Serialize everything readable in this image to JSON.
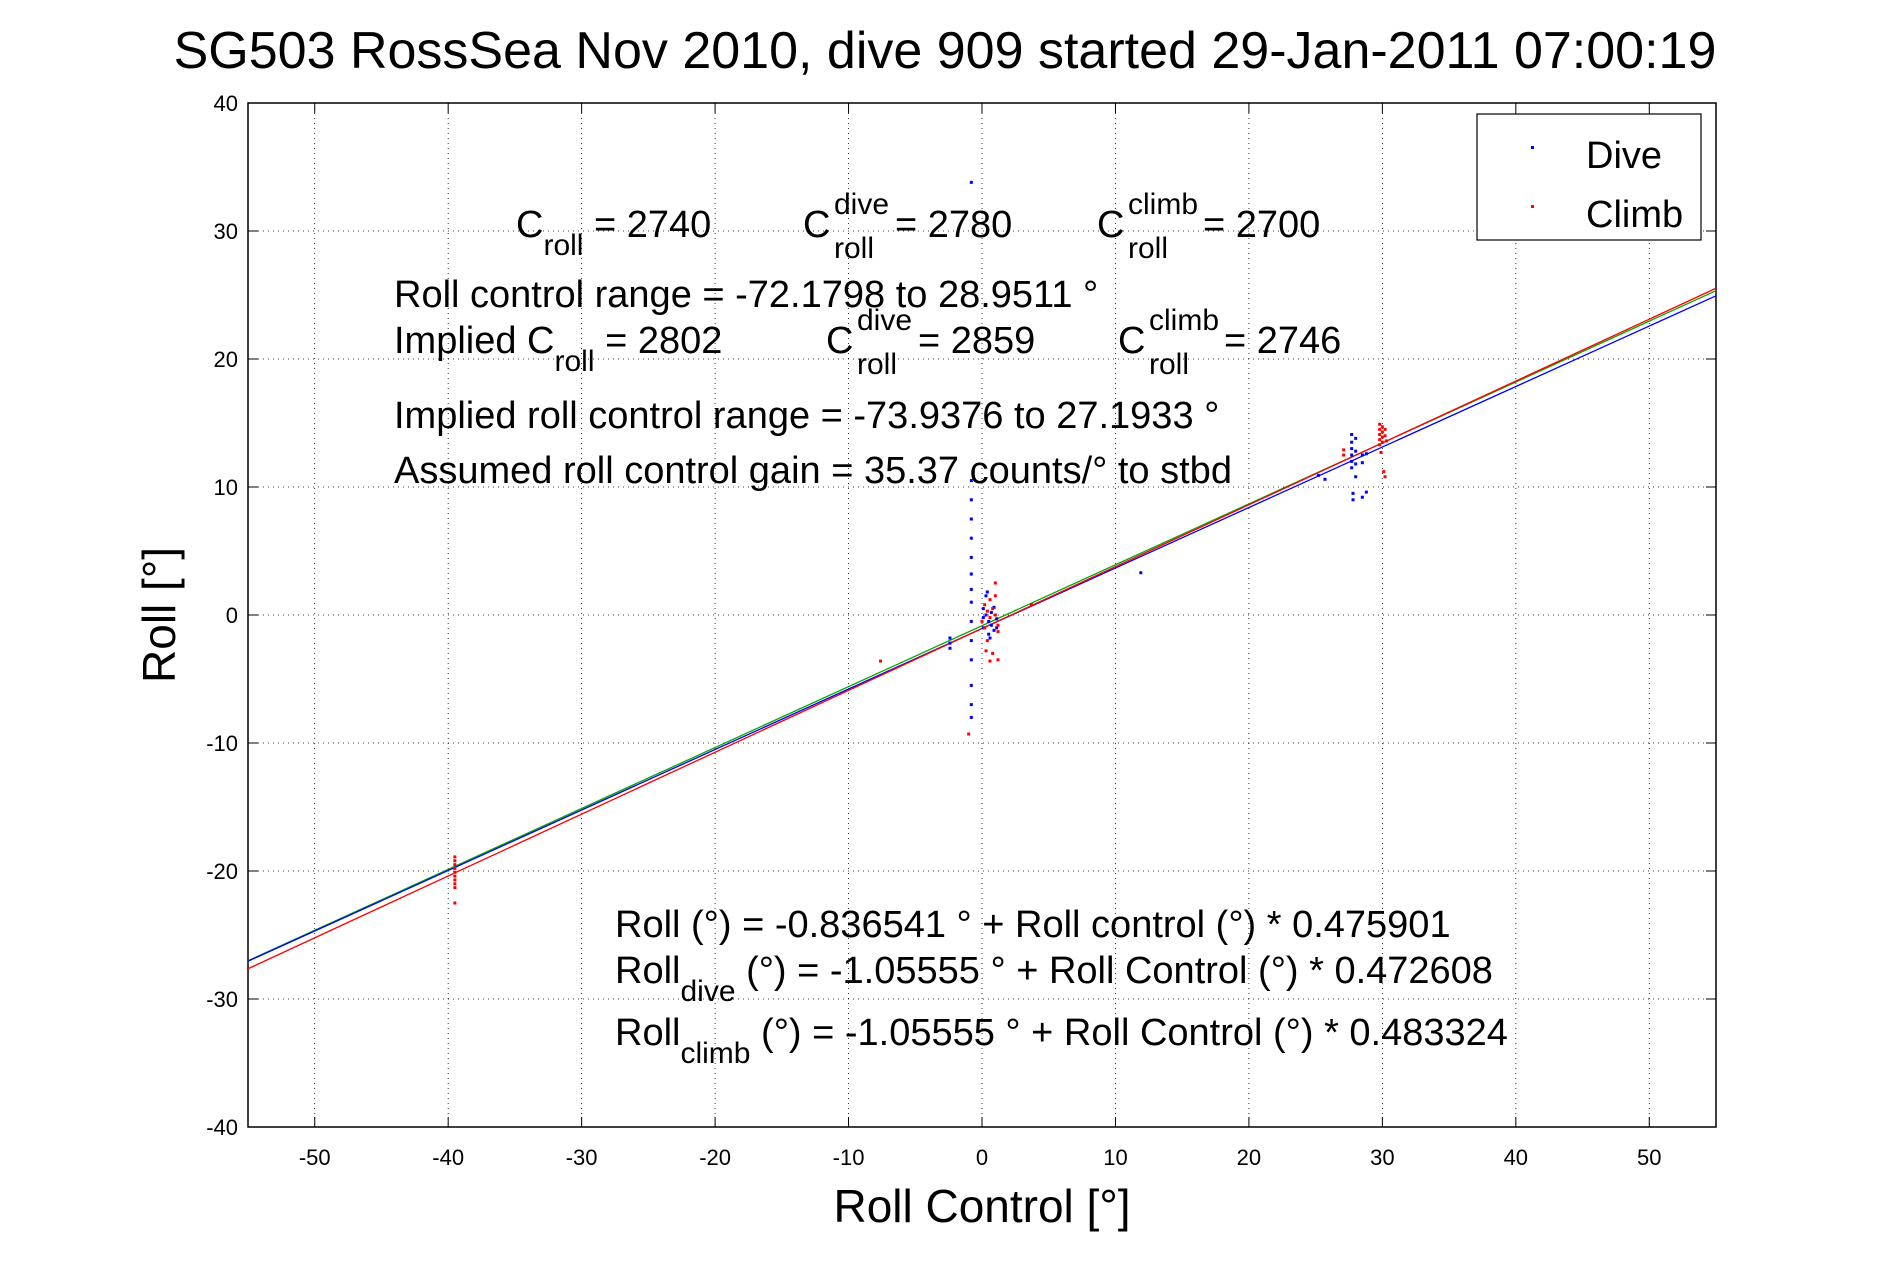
{
  "chart_data": {
    "type": "scatter",
    "title": "SG503 RossSea Nov 2010, dive 909 started 29-Jan-2011 07:00:19",
    "xlabel": "Roll Control [°]",
    "ylabel": "Roll [°]",
    "xlim": [
      -55,
      55
    ],
    "ylim": [
      -40,
      40
    ],
    "xticks": [
      -50,
      -40,
      -30,
      -20,
      -10,
      0,
      10,
      20,
      30,
      40,
      50
    ],
    "yticks": [
      -40,
      -30,
      -20,
      -10,
      0,
      10,
      20,
      30,
      40
    ],
    "grid": true,
    "legend": {
      "position": "top-right",
      "entries": [
        "Dive",
        "Climb"
      ]
    },
    "colors": {
      "dive": "#0000ff",
      "climb": "#ff0000",
      "fit_all": "#00aa00",
      "fit_dive": "#0000ff",
      "fit_climb": "#ff0000"
    },
    "series": [
      {
        "name": "Dive",
        "color": "#0000ff",
        "points": [
          [
            -0.8,
            33.8
          ],
          [
            -0.8,
            10.5
          ],
          [
            -0.8,
            9.0
          ],
          [
            -0.8,
            7.5
          ],
          [
            -0.8,
            6.0
          ],
          [
            -0.8,
            4.5
          ],
          [
            -0.8,
            3.2
          ],
          [
            -0.8,
            2.0
          ],
          [
            -0.8,
            1.0
          ],
          [
            -0.8,
            -0.5
          ],
          [
            -0.8,
            -2.0
          ],
          [
            -0.8,
            -3.5
          ],
          [
            -0.8,
            -5.5
          ],
          [
            -0.8,
            -7.0
          ],
          [
            -0.8,
            -8.0
          ],
          [
            -2.4,
            -1.8
          ],
          [
            -2.4,
            -2.2
          ],
          [
            -2.4,
            -2.6
          ],
          [
            0.1,
            0.5
          ],
          [
            0.1,
            -0.2
          ],
          [
            0.1,
            -1.0
          ],
          [
            0.3,
            1.5
          ],
          [
            0.3,
            0.0
          ],
          [
            0.5,
            -0.5
          ],
          [
            0.5,
            -1.5
          ],
          [
            0.7,
            0.2
          ],
          [
            0.7,
            -0.8
          ],
          [
            0.9,
            0.6
          ],
          [
            0.9,
            -1.2
          ],
          [
            1.1,
            -0.3
          ],
          [
            1.1,
            -1.0
          ],
          [
            0.4,
            1.8
          ],
          [
            0.6,
            -1.8
          ],
          [
            11.9,
            3.3
          ],
          [
            25.2,
            10.9
          ],
          [
            25.7,
            10.6
          ],
          [
            27.7,
            14.1
          ],
          [
            27.7,
            13.5
          ],
          [
            27.7,
            13.0
          ],
          [
            27.7,
            12.5
          ],
          [
            27.7,
            12.0
          ],
          [
            27.7,
            11.5
          ],
          [
            28.0,
            13.8
          ],
          [
            28.0,
            12.8
          ],
          [
            28.0,
            11.8
          ],
          [
            28.0,
            10.8
          ],
          [
            28.5,
            12.5
          ],
          [
            28.5,
            11.9
          ],
          [
            28.8,
            12.6
          ],
          [
            27.8,
            9.5
          ],
          [
            27.8,
            9.0
          ],
          [
            28.5,
            9.2
          ],
          [
            28.8,
            9.6
          ]
        ]
      },
      {
        "name": "Climb",
        "color": "#ff0000",
        "points": [
          [
            -39.5,
            -18.9
          ],
          [
            -39.5,
            -19.2
          ],
          [
            -39.5,
            -19.5
          ],
          [
            -39.5,
            -19.8
          ],
          [
            -39.5,
            -20.1
          ],
          [
            -39.5,
            -20.4
          ],
          [
            -39.5,
            -20.7
          ],
          [
            -39.5,
            -21.0
          ],
          [
            -39.5,
            -21.3
          ],
          [
            -39.5,
            -22.5
          ],
          [
            -7.6,
            -3.6
          ],
          [
            -1.0,
            -9.3
          ],
          [
            0.0,
            -0.5
          ],
          [
            0.2,
            0.8
          ],
          [
            0.2,
            -1.0
          ],
          [
            0.4,
            0.3
          ],
          [
            0.4,
            -2.0
          ],
          [
            0.6,
            1.2
          ],
          [
            0.6,
            -0.2
          ],
          [
            0.8,
            0.5
          ],
          [
            0.8,
            -3.0
          ],
          [
            1.0,
            2.5
          ],
          [
            1.0,
            1.5
          ],
          [
            1.0,
            0.0
          ],
          [
            1.2,
            -0.8
          ],
          [
            1.2,
            -1.3
          ],
          [
            1.2,
            -3.5
          ],
          [
            0.6,
            -3.6
          ],
          [
            0.3,
            -2.8
          ],
          [
            3.7,
            0.8
          ],
          [
            27.1,
            12.9
          ],
          [
            27.1,
            12.5
          ],
          [
            29.8,
            14.9
          ],
          [
            29.8,
            14.5
          ],
          [
            29.8,
            14.1
          ],
          [
            29.8,
            13.7
          ],
          [
            29.8,
            13.3
          ],
          [
            30.0,
            14.7
          ],
          [
            30.0,
            14.3
          ],
          [
            30.0,
            13.9
          ],
          [
            30.0,
            13.5
          ],
          [
            30.2,
            14.5
          ],
          [
            30.2,
            14.0
          ],
          [
            30.3,
            13.6
          ],
          [
            29.9,
            12.7
          ],
          [
            30.1,
            11.2
          ],
          [
            30.2,
            10.8
          ]
        ]
      }
    ],
    "fit_lines": [
      {
        "name": "all",
        "color": "#00aa00",
        "intercept": -0.836541,
        "slope": 0.475901
      },
      {
        "name": "dive",
        "color": "#0000ff",
        "intercept": -1.05555,
        "slope": 0.472608
      },
      {
        "name": "climb",
        "color": "#ff0000",
        "intercept": -1.05555,
        "slope": 0.483324
      }
    ],
    "annotations": {
      "c_roll": {
        "symbol": "C",
        "sub": "roll",
        "value": " = 2740"
      },
      "c_roll_dive": {
        "symbol": "C",
        "sup": "dive",
        "sub": "roll",
        "value": " = 2780"
      },
      "c_roll_climb": {
        "symbol": "C",
        "sup": "climb",
        "sub": "roll",
        "value": " = 2700"
      },
      "range": "Roll control range = -72.1798 to 28.9511 °",
      "implied_prefix": "Implied C",
      "implied_sub": "roll",
      "implied_value": " = 2802",
      "implied_dive": {
        "symbol": "C",
        "sup": "dive",
        "sub": "roll",
        "value": " = 2859"
      },
      "implied_climb": {
        "symbol": "C",
        "sup": "climb",
        "sub": "roll",
        "value": " = 2746"
      },
      "implied_range": "Implied roll control range = -73.9376 to 27.1933 °",
      "gain": "Assumed roll control gain = 35.37 counts/° to stbd",
      "eq_all": "Roll (°) = -0.836541 ° + Roll control (°) * 0.475901",
      "eq_dive_prefix": "Roll",
      "eq_dive_sub": "dive",
      "eq_dive_rest": " (°) = -1.05555 ° + Roll Control (°) * 0.472608",
      "eq_climb_prefix": "Roll",
      "eq_climb_sub": "climb",
      "eq_climb_rest": " (°) = -1.05555 ° + Roll Control (°) * 0.483324"
    }
  }
}
